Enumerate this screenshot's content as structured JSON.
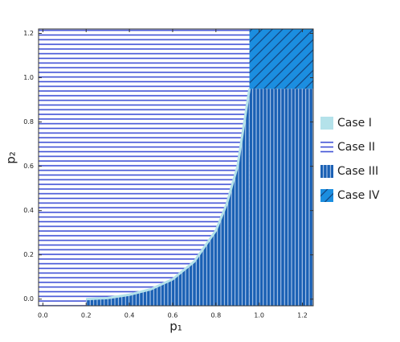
{
  "chart_data": {
    "type": "region",
    "xlabel": "p₁",
    "ylabel": "p₂",
    "xlim": [
      -0.02,
      1.25
    ],
    "ylim": [
      -0.03,
      1.22
    ],
    "xticks": [
      {
        "value": 0,
        "label": "0.0"
      },
      0.2,
      0.4,
      0.6,
      0.8,
      {
        "value": 1,
        "label": "1.0"
      },
      1.2
    ],
    "yticks": [
      {
        "value": 0,
        "label": "0.0"
      },
      0.2,
      0.4,
      0.6,
      0.8,
      {
        "value": 1,
        "label": "1.0"
      },
      1.2
    ],
    "boundary": {
      "x": [
        0.2,
        0.3,
        0.4,
        0.5,
        0.6,
        0.7,
        0.8,
        0.85,
        0.9,
        0.955
      ],
      "y": [
        0,
        0.005,
        0.02,
        0.045,
        0.09,
        0.17,
        0.31,
        0.43,
        0.6,
        0.95
      ]
    },
    "corner": [
      0.955,
      0.95
    ],
    "series": [
      {
        "name": "Case I",
        "color": "#b4e2ea"
      },
      {
        "name": "Case II",
        "color": "#3f51d6"
      },
      {
        "name": "Case III",
        "color": "#1a60b4"
      },
      {
        "name": "Case IV",
        "color": "#1b8ee0"
      }
    ]
  }
}
